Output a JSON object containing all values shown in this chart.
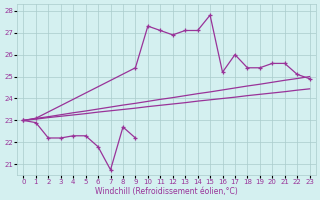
{
  "xlabel": "Windchill (Refroidissement éolien,°C)",
  "hours": [
    0,
    1,
    2,
    3,
    4,
    5,
    6,
    7,
    8,
    9,
    10,
    11,
    12,
    13,
    14,
    15,
    16,
    17,
    18,
    19,
    20,
    21,
    22,
    23
  ],
  "line_upper": [
    23.0,
    23.1,
    null,
    null,
    null,
    null,
    null,
    null,
    null,
    25.4,
    27.3,
    27.1,
    26.9,
    27.1,
    27.1,
    27.8,
    25.2,
    26.0,
    25.4,
    25.4,
    25.6,
    25.6,
    25.1,
    24.9
  ],
  "line_lower": [
    23.0,
    22.9,
    22.2,
    22.2,
    22.3,
    22.3,
    21.8,
    20.75,
    22.7,
    22.2,
    null,
    null,
    null,
    null,
    null,
    null,
    null,
    null,
    null,
    null,
    null,
    null,
    null,
    null
  ],
  "line_straight_top": [
    23.0,
    23.09,
    23.17,
    23.26,
    23.35,
    23.43,
    23.52,
    23.61,
    23.7,
    23.78,
    23.87,
    23.96,
    24.04,
    24.13,
    24.22,
    24.3,
    24.39,
    24.48,
    24.57,
    24.65,
    24.74,
    24.83,
    24.91,
    25.0
  ],
  "line_straight_bot": [
    23.0,
    23.06,
    23.13,
    23.19,
    23.25,
    23.31,
    23.38,
    23.44,
    23.5,
    23.56,
    23.63,
    23.69,
    23.75,
    23.81,
    23.88,
    23.94,
    24.0,
    24.06,
    24.13,
    24.19,
    24.25,
    24.31,
    24.38,
    24.44
  ],
  "color": "#993399",
  "bg_color": "#d4f0f0",
  "grid_color": "#aacccc",
  "ylim": [
    20.5,
    28.3
  ],
  "yticks": [
    21,
    22,
    23,
    24,
    25,
    26,
    27,
    28
  ],
  "xticks": [
    0,
    1,
    2,
    3,
    4,
    5,
    6,
    7,
    8,
    9,
    10,
    11,
    12,
    13,
    14,
    15,
    16,
    17,
    18,
    19,
    20,
    21,
    22,
    23
  ]
}
